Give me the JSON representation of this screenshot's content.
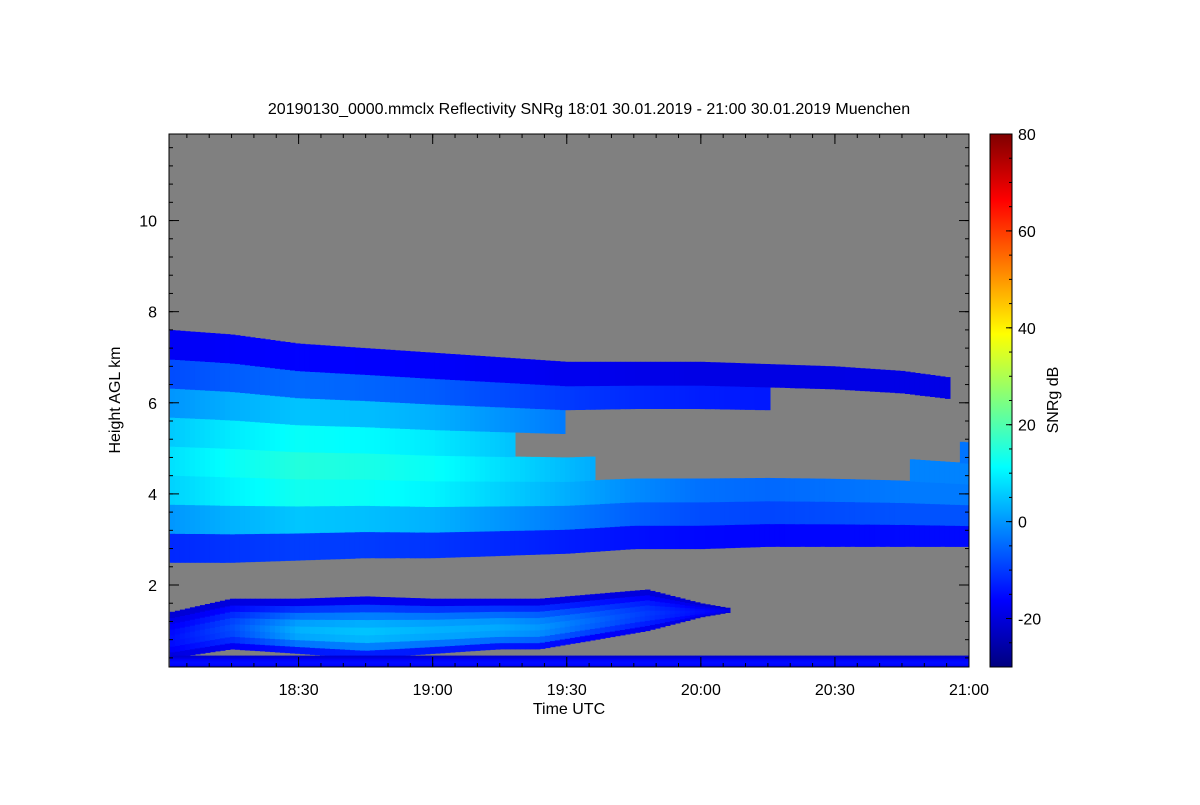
{
  "chart_data": {
    "type": "heatmap",
    "title": "20190130_0000.mmclx Reflectivity SNRg   18:01 30.01.2019 - 21:00 30.01.2019 Muenchen",
    "xlabel": "Time UTC",
    "ylabel": "Height AGL km",
    "colorbar_label": "SNRg dB",
    "x_start": "18:01",
    "x_end": "21:00",
    "xlim": [
      18.0167,
      21.0
    ],
    "ylim": [
      0.2,
      11.9
    ],
    "clim": [
      -30,
      80
    ],
    "x_ticks": [
      {
        "value": 18.5,
        "label": "18:30"
      },
      {
        "value": 19.0,
        "label": "19:00"
      },
      {
        "value": 19.5,
        "label": "19:30"
      },
      {
        "value": 20.0,
        "label": "20:00"
      },
      {
        "value": 20.5,
        "label": "20:30"
      },
      {
        "value": 21.0,
        "label": "21:00"
      }
    ],
    "y_ticks": [
      {
        "value": 2,
        "label": "2"
      },
      {
        "value": 4,
        "label": "4"
      },
      {
        "value": 6,
        "label": "6"
      },
      {
        "value": 8,
        "label": "8"
      },
      {
        "value": 10,
        "label": "10"
      }
    ],
    "colorbar_ticks": [
      {
        "value": -20,
        "label": "-20"
      },
      {
        "value": 0,
        "label": "0"
      },
      {
        "value": 20,
        "label": "20"
      },
      {
        "value": 40,
        "label": "40"
      },
      {
        "value": 60,
        "label": "60"
      },
      {
        "value": 80,
        "label": "80"
      }
    ],
    "colormap": [
      "#00007f",
      "#0000ff",
      "#007fff",
      "#00ffff",
      "#7fff7f",
      "#ffff00",
      "#ff7f00",
      "#ff0000",
      "#7f0000"
    ],
    "background_color": "#808080",
    "layers": [
      {
        "name": "upper-cloud-layer",
        "time": [
          18.02,
          18.25,
          18.5,
          18.75,
          19.0,
          19.25,
          19.5,
          19.75,
          20.0,
          20.25,
          20.5,
          20.75,
          21.0
        ],
        "top": [
          7.6,
          7.5,
          7.3,
          7.2,
          7.1,
          7.0,
          6.9,
          6.9,
          6.9,
          6.85,
          6.8,
          6.7,
          6.5
        ],
        "bottom": [
          2.5,
          2.5,
          2.55,
          2.6,
          2.6,
          2.65,
          2.7,
          2.8,
          2.8,
          2.85,
          2.85,
          2.85,
          2.85
        ],
        "peak_snr": [
          8,
          12,
          15,
          14,
          12,
          8,
          4,
          0,
          -3,
          -4,
          -3,
          -2,
          -2
        ],
        "gap_start": 19.3,
        "gap_time": [
          19.3,
          19.5,
          19.75,
          20.0,
          20.25,
          20.5,
          20.75,
          20.9,
          21.0
        ],
        "gap_top": [
          5.4,
          5.6,
          5.8,
          6.0,
          6.1,
          6.1,
          6.15,
          6.3,
          6.4
        ],
        "gap_bottom": [
          4.8,
          4.6,
          4.5,
          4.5,
          4.5,
          4.5,
          4.5,
          4.6,
          5.1
        ]
      },
      {
        "name": "lower-cloud-layer",
        "time": [
          18.02,
          18.25,
          18.5,
          18.75,
          19.0,
          19.25,
          19.4,
          19.6,
          19.8,
          20.0,
          20.1
        ],
        "top": [
          1.4,
          1.7,
          1.7,
          1.75,
          1.7,
          1.7,
          1.7,
          1.8,
          1.9,
          1.6,
          1.5
        ],
        "bottom": [
          0.4,
          0.6,
          0.5,
          0.4,
          0.5,
          0.6,
          0.6,
          0.8,
          1.0,
          1.3,
          1.4
        ],
        "peak_snr": [
          -15,
          -8,
          3,
          5,
          3,
          2,
          0,
          -5,
          -10,
          -15,
          -18
        ]
      },
      {
        "name": "surface-clutter",
        "time": [
          18.02,
          21.0
        ],
        "top": [
          0.45,
          0.45
        ],
        "bottom": [
          0.2,
          0.2
        ],
        "peak_snr": [
          -15,
          -15
        ]
      }
    ]
  }
}
